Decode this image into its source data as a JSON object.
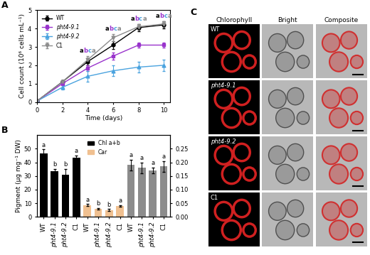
{
  "chart_data": [
    {
      "type": "line",
      "title": "A",
      "x": [
        0,
        2,
        4,
        6,
        8,
        10
      ],
      "x_label": "Time (days)",
      "y_label": "Cell count (10⁶ cells mL⁻¹)",
      "xlim": [
        0,
        10.5
      ],
      "ylim": [
        0,
        5
      ],
      "xticks": [
        0,
        2,
        4,
        6,
        8,
        10
      ],
      "yticks": [
        0,
        1,
        2,
        3,
        4,
        5
      ],
      "legend": "upper left",
      "series": [
        {
          "name": "WT",
          "color": "#000000",
          "marker": "circle",
          "values": [
            0.05,
            1.1,
            2.2,
            3.1,
            4.05,
            4.2
          ],
          "errors": [
            0.02,
            0.1,
            0.2,
            0.2,
            0.2,
            0.2
          ],
          "letters": [
            null,
            null,
            "a",
            "a",
            "a",
            "a"
          ]
        },
        {
          "name": "pht4-9.1",
          "color": "#9933cc",
          "marker": "square",
          "values": [
            0.05,
            1.0,
            1.85,
            2.5,
            3.1,
            3.1
          ],
          "errors": [
            0.02,
            0.1,
            0.15,
            0.2,
            0.15,
            0.15
          ],
          "letters": [
            null,
            null,
            "b",
            "b",
            "b",
            "b"
          ]
        },
        {
          "name": "pht4-9.2",
          "color": "#4aa3df",
          "marker": "triangle",
          "values": [
            0.05,
            0.8,
            1.4,
            1.7,
            1.9,
            2.0
          ],
          "errors": [
            0.02,
            0.1,
            0.3,
            0.3,
            0.3,
            0.3
          ],
          "letters": [
            null,
            null,
            "c",
            "c",
            "c",
            "c"
          ]
        },
        {
          "name": "C1",
          "color": "#8c8c8c",
          "marker": "triangle_down",
          "values": [
            0.05,
            1.1,
            2.3,
            3.5,
            4.1,
            4.25
          ],
          "errors": [
            0.02,
            0.1,
            0.2,
            0.2,
            0.15,
            0.15
          ],
          "letters": [
            null,
            null,
            "a",
            "a",
            "a",
            "a"
          ]
        }
      ]
    },
    {
      "type": "bar",
      "title": "B",
      "categories": [
        "WT",
        "pht4-9.1",
        "pht4-9.2",
        "C1",
        "WT",
        "pht4-9.1",
        "pht4-9.2",
        "C1",
        "WT",
        "pht4-9.1",
        "pht4-9.2",
        "C1"
      ],
      "y_label": "Pigment (µg mg⁻¹ DW)",
      "ylim": [
        0,
        60
      ],
      "yticks": [
        0,
        10,
        20,
        30,
        40,
        50
      ],
      "y2lim": [
        0,
        0.3
      ],
      "y2ticks": [
        {
          "value": 0,
          "label": "0.00"
        },
        {
          "value": 0.05,
          "label": "0.05"
        },
        {
          "value": 0.1,
          "label": "0.10"
        },
        {
          "value": 0.15,
          "label": "0.15"
        },
        {
          "value": 0.2,
          "label": "0.20"
        },
        {
          "value": 0.25,
          "label": "0.25"
        }
      ],
      "legend": "upper center",
      "series": [
        {
          "name": "Chl a+b",
          "color": "#000000",
          "values": [
            46.5,
            33.5,
            31,
            43.5,
            null,
            null,
            null,
            null,
            null,
            null,
            null,
            null
          ],
          "errors": [
            3,
            1.5,
            4,
            1.5,
            null,
            null,
            null,
            null,
            null,
            null,
            null,
            null
          ],
          "letters": [
            "a",
            "b",
            "b",
            "a",
            null,
            null,
            null,
            null,
            null,
            null,
            null,
            null
          ]
        },
        {
          "name": "Car",
          "color": "#f0c090",
          "values": [
            null,
            null,
            null,
            null,
            8.5,
            6,
            5,
            8,
            null,
            null,
            null,
            null
          ],
          "errors": [
            null,
            null,
            null,
            null,
            0.8,
            0.5,
            0.6,
            0.5,
            null,
            null,
            null,
            null
          ],
          "letters": [
            null,
            null,
            null,
            null,
            "a",
            "b",
            "b",
            "a",
            null,
            null,
            null,
            null
          ]
        },
        {
          "color": "#8c8c8c",
          "axis": "y2",
          "values": [
            null,
            null,
            null,
            null,
            null,
            null,
            null,
            null,
            0.19,
            0.18,
            0.17,
            0.185
          ],
          "errors": [
            null,
            null,
            null,
            null,
            null,
            null,
            null,
            null,
            0.02,
            0.02,
            0.01,
            0.02
          ],
          "letters": [
            null,
            null,
            null,
            null,
            null,
            null,
            null,
            null,
            "a",
            "a",
            "a",
            "a"
          ]
        }
      ]
    }
  ],
  "image_panel": {
    "title": "C",
    "columns": [
      "Chlorophyll",
      "Bright",
      "Composite"
    ],
    "rows": [
      "WT",
      "pht4-9.1",
      "pht4-9.2",
      "C1"
    ]
  }
}
